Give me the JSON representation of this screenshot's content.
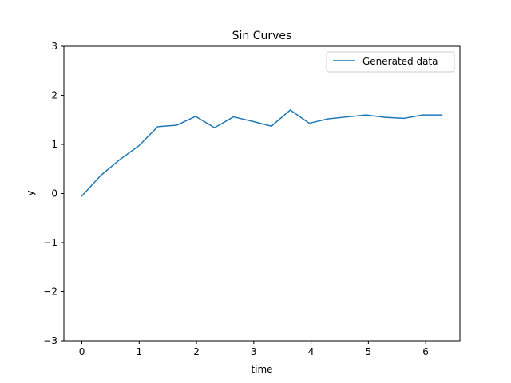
{
  "chart_data": {
    "type": "line",
    "title": "Sin Curves",
    "xlabel": "time",
    "ylabel": "y",
    "xlim": [
      -0.31416,
      6.59734
    ],
    "ylim": [
      -3,
      3
    ],
    "xticks": [
      0,
      1,
      2,
      3,
      4,
      5,
      6
    ],
    "yticks": [
      -3,
      -2,
      -1,
      0,
      1,
      2,
      3
    ],
    "xtick_labels": [
      "0",
      "1",
      "2",
      "3",
      "4",
      "5",
      "6"
    ],
    "ytick_labels": [
      "−3",
      "−2",
      "−1",
      "0",
      "1",
      "2",
      "3"
    ],
    "grid": false,
    "legend_position": "upper-right",
    "series": [
      {
        "name": "Generated data",
        "color": "#1f77b4",
        "x": [
          0,
          0.3307,
          0.6614,
          0.9921,
          1.3228,
          1.6535,
          1.9842,
          2.3149,
          2.6456,
          2.9762,
          3.3069,
          3.6376,
          3.9683,
          4.299,
          4.6297,
          4.9604,
          5.2911,
          5.6218,
          5.9525,
          6.2832
        ],
        "y": [
          -0.05,
          0.37,
          0.69,
          0.97,
          1.36,
          1.39,
          1.57,
          1.34,
          1.56,
          1.47,
          1.37,
          1.7,
          1.43,
          1.52,
          1.56,
          1.6,
          1.55,
          1.53,
          1.6,
          1.6
        ]
      }
    ]
  }
}
